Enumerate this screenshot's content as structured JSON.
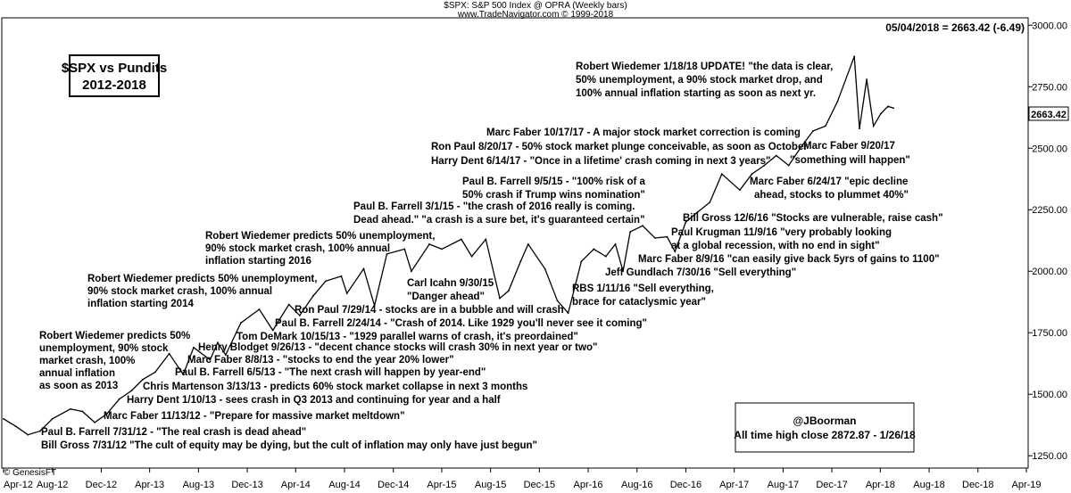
{
  "header": {
    "line1": "$SPX:  S&P 500 Index @ OPRA  (Weekly bars)",
    "line2": "www.TradeNavigator.com © 1999-2018",
    "readout": "05/04/2018 = 2663.42 (-6.49)",
    "footer_left": "© GenesisFT"
  },
  "title_box": {
    "line1": "$SPX vs Pundits",
    "line2": "2012-2018"
  },
  "info_box": {
    "line1": "@JBoorman",
    "line2": "All time high close 2872.87 - 1/26/18"
  },
  "last_price_label": "2663.42",
  "annotations": [
    "Robert Wiedemer 1/18/18 UPDATE! \"the data is clear,",
    "50% unemployment, a 90% stock market drop, and",
    "100% annual inflation starting as soon as next yr.",
    "Marc Faber 10/17/17 - A major stock market correction is coming",
    "Ron Paul 8/20/17 - 50% stock market plunge conceivable, as soon as October",
    "Harry Dent  6/14/17 - \"Once in a lifetime' crash coming in next 3 years\"",
    "Marc Faber 9/20/17",
    "\"something will happen\"",
    "Marc Faber 6/24/17 \"epic decline",
    "ahead, stocks to plummet 40%\"",
    "Paul B. Farrell 9/5/15 - \"100% risk of a",
    "50% crash if Trump wins nomination\"",
    "Paul B. Farrell 3/1/15 - \"the crash of 2016 really is coming.",
    "Dead ahead.\" \"a crash is a sure bet, it's guaranteed certain\"",
    "Bill Gross 12/6/16 \"Stocks are vulnerable, raise cash\"",
    "Paul Krugman 11/9/16 \"very probably looking",
    "at a global recession, with no end in sight\"",
    "Marc Faber 8/9/16 \"can easily give back 5yrs of gains to 1100\"",
    "Jeff Gundlach 7/30/16 \"Sell everything\"",
    "Robert Wiedemer predicts 50% unemployment,",
    "90% stock market crash, 100% annual",
    "inflation starting 2016",
    "Carl Icahn 9/30/15",
    "\"Danger ahead\"",
    "RBS 1/11/16 \"Sell everything,",
    "brace for cataclysmic year\"",
    "Robert Wiedemer predicts 50% unemployment,",
    "90% stock market crash, 100% annual",
    "inflation starting 2014",
    "Ron Paul 7/29/14 - stocks are in a bubble and will crash",
    "Paul B. Farrell 2/24/14 - \"Crash of 2014. Like 1929 you'll never see it coming\"",
    "Tom DeMark 10/15/13 - \"1929 parallel warns of crash, it's preordained\"",
    "Henry Blodget 9/26/13 - \"decent chance stocks will crash 30% in next year or two\"",
    "Marc Faber 8/8/13 - \"stocks to end the year 20% lower\"",
    "Paul B. Farrell   6/5/13 - \"The next crash will happen by year-end\"",
    "Chris Martenson 3/13/13 - predicts 60% stock market collapse in next 3 months",
    "Harry Dent  1/10/13 - sees crash in Q3 2013 and continuing for year and a half",
    "Marc Faber 11/13/12 - \"Prepare for massive market meltdown\"",
    "Paul B. Farrell 7/31/12 - \"The real crash is dead ahead\"",
    "Bill Gross 7/31/12 \"The cult of equity may be dying, but the cult of inflation may only have just begun\"",
    "Robert Wiedemer predicts 50%",
    "unemployment, 90% stock",
    "market crash, 100%",
    "annual inflation",
    "as soon as 2013"
  ],
  "chart_data": {
    "type": "line",
    "title": "$SPX vs Pundits 2012-2018",
    "xlabel": "",
    "ylabel": "",
    "x_ticks": [
      "Apr-12",
      "Aug-12",
      "Dec-12",
      "Apr-13",
      "Aug-13",
      "Dec-13",
      "Apr-14",
      "Aug-14",
      "Dec-14",
      "Apr-15",
      "Aug-15",
      "Dec-15",
      "Apr-16",
      "Aug-16",
      "Dec-16",
      "Apr-17",
      "Aug-17",
      "Dec-17",
      "Apr-18",
      "Aug-18",
      "Dec-18",
      "Apr-19"
    ],
    "y_ticks": [
      "1250.00",
      "1500.00",
      "1750.00",
      "2000.00",
      "2250.00",
      "2500.00",
      "2750.00",
      "3000.00"
    ],
    "ylim": [
      1200,
      3030
    ],
    "xlim": [
      "2012-04-01",
      "2019-04-01"
    ],
    "series": [
      {
        "x": [
          "2012-04-01",
          "2012-05-01",
          "2012-06-01",
          "2012-07-01",
          "2012-08-01",
          "2012-09-15",
          "2012-10-15",
          "2012-11-15",
          "2012-12-15",
          "2013-01-15",
          "2013-02-15",
          "2013-03-15",
          "2013-04-15",
          "2013-05-20",
          "2013-06-24",
          "2013-07-20",
          "2013-08-30",
          "2013-09-18",
          "2013-10-08",
          "2013-11-15",
          "2013-12-31",
          "2014-02-03",
          "2014-03-15",
          "2014-04-11",
          "2014-05-15",
          "2014-06-15",
          "2014-07-24",
          "2014-08-07",
          "2014-09-18",
          "2014-10-15",
          "2014-11-15",
          "2014-12-29",
          "2015-01-15",
          "2015-03-01",
          "2015-04-01",
          "2015-05-20",
          "2015-06-15",
          "2015-07-20",
          "2015-08-24",
          "2015-09-15",
          "2015-10-15",
          "2015-11-03",
          "2015-12-15",
          "2016-01-15",
          "2016-02-11",
          "2016-03-15",
          "2016-04-15",
          "2016-05-15",
          "2016-06-08",
          "2016-06-27",
          "2016-07-15",
          "2016-08-15",
          "2016-09-15",
          "2016-10-15",
          "2016-11-04",
          "2016-12-01",
          "2016-12-30",
          "2017-01-30",
          "2017-03-01",
          "2017-04-15",
          "2017-05-15",
          "2017-06-15",
          "2017-07-15",
          "2017-08-15",
          "2017-09-15",
          "2017-10-15",
          "2017-11-15",
          "2017-12-15",
          "2018-01-26",
          "2018-02-08",
          "2018-02-26",
          "2018-03-15",
          "2018-04-02",
          "2018-04-20",
          "2018-05-04"
        ],
        "values": [
          1400,
          1370,
          1335,
          1350,
          1400,
          1440,
          1430,
          1385,
          1420,
          1480,
          1515,
          1560,
          1590,
          1665,
          1580,
          1690,
          1640,
          1710,
          1660,
          1790,
          1845,
          1760,
          1865,
          1820,
          1900,
          1960,
          1980,
          1910,
          2010,
          1860,
          2070,
          2090,
          2000,
          2110,
          2090,
          2130,
          2060,
          2130,
          1890,
          1920,
          2040,
          2110,
          2010,
          1880,
          1830,
          2040,
          2090,
          2060,
          2110,
          2000,
          2160,
          2185,
          2135,
          2140,
          2080,
          2200,
          2240,
          2280,
          2395,
          2330,
          2395,
          2430,
          2470,
          2430,
          2505,
          2570,
          2590,
          2690,
          2873,
          2580,
          2780,
          2590,
          2640,
          2670,
          2663
        ]
      }
    ],
    "last_value": 2663.42,
    "all_time_high": {
      "date": "2018-01-26",
      "value": 2872.87
    },
    "grid": false,
    "legend": "none"
  }
}
